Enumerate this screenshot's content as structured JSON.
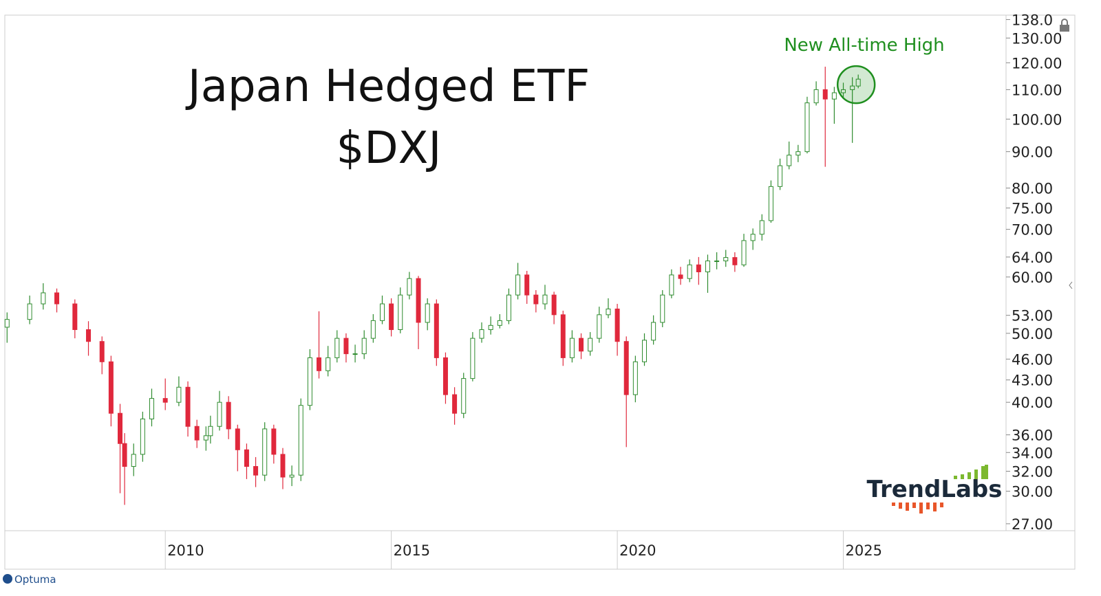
{
  "chart_data": {
    "type": "candlestick",
    "title": "Japan Hedged ETF",
    "subtitle": "$DXJ",
    "annotation": "New All-time High",
    "logo": "TrendLabs",
    "watermark": "Optuma",
    "log_scale": true,
    "up_color": "#2e8b2e",
    "down_color": "#e0283c",
    "annotation_color": "#1f8f1f",
    "xlim": [
      2006.45,
      2028.6
    ],
    "xticks": [
      2010,
      2015,
      2020,
      2025
    ],
    "ylim": [
      26.4,
      140
    ],
    "yticks": [
      {
        "value": 138,
        "label": "138.0"
      },
      {
        "value": 130,
        "label": "130.00"
      },
      {
        "value": 120,
        "label": "120.00"
      },
      {
        "value": 110,
        "label": "110.00"
      },
      {
        "value": 100,
        "label": "100.00"
      },
      {
        "value": 90,
        "label": "90.00"
      },
      {
        "value": 80,
        "label": "80.00"
      },
      {
        "value": 75,
        "label": "75.00"
      },
      {
        "value": 70,
        "label": "70.00"
      },
      {
        "value": 64,
        "label": "64.00"
      },
      {
        "value": 60,
        "label": "60.00"
      },
      {
        "value": 53,
        "label": "53.00"
      },
      {
        "value": 50,
        "label": "50.00"
      },
      {
        "value": 46,
        "label": "46.00"
      },
      {
        "value": 43,
        "label": "43.00"
      },
      {
        "value": 40,
        "label": "40.00"
      },
      {
        "value": 36,
        "label": "36.00"
      },
      {
        "value": 34,
        "label": "34.00"
      },
      {
        "value": 32,
        "label": "32.00"
      },
      {
        "value": 30,
        "label": "30.00"
      },
      {
        "value": 27,
        "label": "27.00"
      }
    ],
    "x": [
      2006.5,
      2007.0,
      2007.3,
      2007.6,
      2008.0,
      2008.3,
      2008.6,
      2008.8,
      2009.0,
      2009.1,
      2009.3,
      2009.5,
      2009.7,
      2010.0,
      2010.3,
      2010.5,
      2010.7,
      2010.9,
      2011.0,
      2011.2,
      2011.4,
      2011.6,
      2011.8,
      2012.0,
      2012.2,
      2012.4,
      2012.6,
      2012.8,
      2013.0,
      2013.2,
      2013.4,
      2013.6,
      2013.8,
      2014.0,
      2014.2,
      2014.4,
      2014.6,
      2014.8,
      2015.0,
      2015.2,
      2015.4,
      2015.6,
      2015.8,
      2016.0,
      2016.2,
      2016.4,
      2016.6,
      2016.8,
      2017.0,
      2017.2,
      2017.4,
      2017.6,
      2017.8,
      2018.0,
      2018.2,
      2018.4,
      2018.6,
      2018.8,
      2019.0,
      2019.2,
      2019.4,
      2019.6,
      2019.8,
      2020.0,
      2020.2,
      2020.4,
      2020.6,
      2020.8,
      2021.0,
      2021.2,
      2021.4,
      2021.6,
      2021.8,
      2022.0,
      2022.2,
      2022.4,
      2022.6,
      2022.8,
      2023.0,
      2023.2,
      2023.4,
      2023.6,
      2023.8,
      2024.0,
      2024.2,
      2024.4,
      2024.6,
      2024.8,
      2025.0,
      2025.2,
      2025.33
    ],
    "open": [
      51.0,
      52.3,
      55.0,
      57.0,
      55.0,
      50.6,
      48.7,
      45.6,
      38.6,
      35.0,
      32.5,
      33.8,
      37.9,
      40.5,
      40.0,
      42.0,
      37.0,
      35.4,
      35.9,
      37.0,
      40.0,
      36.7,
      34.3,
      32.5,
      31.6,
      36.7,
      33.8,
      31.4,
      31.6,
      39.6,
      46.2,
      44.3,
      46.2,
      49.2,
      46.8,
      46.8,
      49.2,
      52.1,
      55.0,
      50.6,
      56.6,
      59.7,
      51.8,
      55.0,
      46.2,
      41.0,
      38.6,
      43.2,
      49.2,
      50.6,
      51.3,
      52.1,
      56.6,
      60.4,
      56.6,
      55.0,
      56.6,
      53.1,
      46.2,
      49.2,
      47.2,
      49.2,
      53.1,
      54.1,
      48.7,
      41.0,
      45.6,
      48.9,
      51.8,
      56.6,
      60.4,
      59.7,
      62.4,
      61.0,
      63.2,
      63.2,
      63.9,
      62.4,
      67.5,
      68.9,
      72.0,
      80.4,
      86.0,
      89.0,
      90.0,
      105.4,
      110.0,
      106.7,
      108.9,
      110.0,
      111.3
    ],
    "high": [
      53.5,
      56.5,
      58.8,
      57.8,
      55.8,
      52.0,
      49.5,
      46.5,
      39.8,
      36.2,
      35.0,
      38.8,
      41.8,
      43.2,
      43.5,
      42.8,
      37.8,
      37.0,
      38.3,
      41.5,
      40.8,
      37.2,
      35.0,
      33.5,
      37.5,
      37.2,
      34.5,
      32.6,
      40.5,
      47.5,
      53.7,
      48.0,
      50.5,
      50.0,
      48.2,
      50.5,
      53.2,
      56.5,
      56.0,
      58.0,
      61.0,
      60.2,
      56.0,
      55.8,
      47.0,
      42.0,
      44.0,
      50.2,
      51.8,
      52.8,
      53.2,
      57.8,
      62.8,
      61.2,
      57.5,
      58.5,
      57.2,
      53.8,
      50.5,
      50.0,
      50.2,
      54.5,
      56.0,
      55.0,
      49.5,
      46.5,
      50.0,
      53.0,
      57.5,
      61.5,
      62.0,
      63.5,
      64.0,
      64.5,
      65.0,
      65.5,
      65.0,
      69.0,
      70.2,
      73.5,
      82.0,
      88.0,
      93.0,
      92.0,
      107.5,
      113.0,
      118.5,
      111.0,
      112.5,
      114.5,
      115.5
    ],
    "low": [
      48.5,
      51.5,
      54.0,
      53.5,
      49.2,
      46.5,
      43.8,
      37.0,
      29.8,
      28.7,
      31.5,
      33.0,
      37.0,
      39.0,
      39.5,
      35.8,
      34.5,
      34.2,
      35.0,
      36.5,
      35.5,
      32.0,
      31.2,
      30.4,
      31.0,
      32.8,
      30.2,
      30.5,
      31.0,
      39.0,
      43.2,
      43.5,
      45.5,
      45.5,
      45.5,
      46.0,
      48.5,
      51.5,
      49.5,
      50.0,
      55.8,
      47.5,
      50.5,
      45.0,
      39.8,
      37.2,
      38.0,
      42.8,
      48.5,
      49.8,
      50.8,
      51.5,
      55.8,
      55.0,
      53.5,
      54.0,
      51.5,
      45.0,
      45.5,
      46.0,
      46.5,
      48.5,
      52.5,
      46.5,
      34.6,
      40.0,
      45.0,
      48.2,
      51.0,
      56.0,
      58.5,
      59.0,
      58.5,
      57.0,
      61.5,
      62.0,
      61.0,
      62.0,
      65.5,
      67.5,
      71.5,
      79.5,
      85.0,
      87.0,
      89.5,
      104.5,
      85.7,
      98.5,
      107.0,
      92.6,
      110.5
    ],
    "close": [
      52.3,
      55.0,
      57.0,
      55.0,
      50.6,
      48.7,
      45.6,
      38.6,
      35.0,
      32.5,
      33.8,
      37.9,
      40.5,
      40.0,
      42.0,
      37.0,
      35.4,
      35.9,
      37.0,
      40.0,
      36.7,
      34.3,
      32.5,
      31.6,
      36.7,
      33.8,
      31.4,
      31.6,
      39.6,
      46.2,
      44.3,
      46.2,
      49.2,
      46.8,
      46.8,
      49.2,
      52.1,
      55.0,
      50.6,
      56.6,
      59.7,
      51.8,
      55.0,
      46.2,
      41.0,
      38.6,
      43.2,
      49.2,
      50.6,
      51.3,
      52.1,
      56.6,
      60.4,
      56.6,
      55.0,
      56.6,
      53.1,
      46.2,
      49.2,
      47.2,
      49.2,
      53.1,
      54.1,
      48.7,
      41.0,
      45.6,
      48.9,
      51.8,
      56.6,
      60.4,
      59.7,
      62.4,
      61.0,
      63.2,
      63.2,
      63.9,
      62.4,
      67.5,
      68.9,
      72.0,
      80.4,
      86.0,
      89.0,
      90.0,
      105.4,
      110.0,
      106.7,
      108.9,
      110.0,
      111.3,
      113.8
    ]
  }
}
